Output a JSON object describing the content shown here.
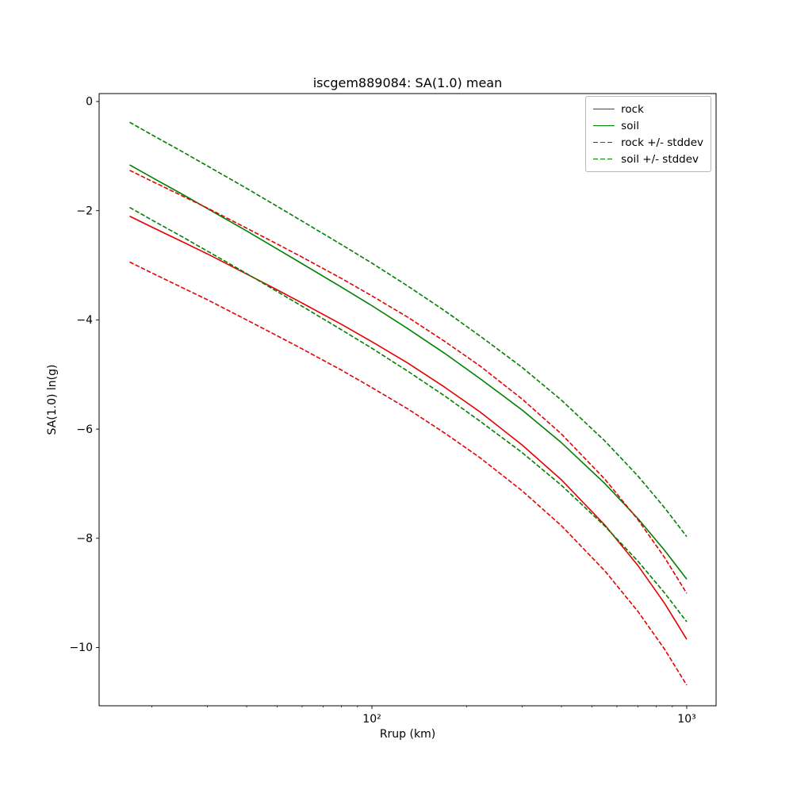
{
  "title": "iscgem889084: SA(1.0) mean",
  "chart_data": {
    "type": "line",
    "title": "iscgem889084: SA(1.0) mean",
    "xlabel": "Rrup (km)",
    "ylabel": "SA(1.0) ln(g)",
    "x_scale": "log",
    "xlim": [
      13.6,
      1240
    ],
    "ylim": [
      -11.1,
      0.15
    ],
    "grid": false,
    "legend_position": "upper right",
    "y_ticks": [
      0,
      -2,
      -4,
      -6,
      -8,
      -10
    ],
    "y_tick_labels": [
      "0",
      "−2",
      "−4",
      "−6",
      "−8",
      "−10"
    ],
    "x_tick_values": [
      100,
      1000
    ],
    "x_tick_labels": [
      "10²",
      "10³"
    ],
    "x": [
      17,
      20,
      25,
      30,
      40,
      50,
      60,
      80,
      100,
      130,
      170,
      220,
      300,
      400,
      550,
      700,
      850,
      1000
    ],
    "series": [
      {
        "name": "rock",
        "color": "#e60000",
        "style": "solid",
        "values": [
          -2.1,
          -2.3,
          -2.57,
          -2.79,
          -3.16,
          -3.45,
          -3.69,
          -4.08,
          -4.4,
          -4.79,
          -5.23,
          -5.68,
          -6.29,
          -6.93,
          -7.76,
          -8.5,
          -9.19,
          -9.85
        ]
      },
      {
        "name": "soil",
        "color": "#008000",
        "style": "solid",
        "values": [
          -1.16,
          -1.39,
          -1.7,
          -1.96,
          -2.37,
          -2.7,
          -2.97,
          -3.4,
          -3.74,
          -4.16,
          -4.61,
          -5.07,
          -5.65,
          -6.25,
          -7.0,
          -7.64,
          -8.22,
          -8.75
        ]
      },
      {
        "name": "rock + stddev",
        "color": "#e60000",
        "style": "dashed",
        "values": [
          -1.26,
          -1.46,
          -1.73,
          -1.95,
          -2.32,
          -2.61,
          -2.85,
          -3.24,
          -3.56,
          -3.95,
          -4.39,
          -4.84,
          -5.45,
          -6.09,
          -6.92,
          -7.66,
          -8.35,
          -9.01
        ]
      },
      {
        "name": "rock - stddev",
        "color": "#e60000",
        "style": "dashed",
        "values": [
          -2.94,
          -3.14,
          -3.41,
          -3.63,
          -4.0,
          -4.29,
          -4.53,
          -4.92,
          -5.24,
          -5.63,
          -6.07,
          -6.52,
          -7.13,
          -7.77,
          -8.6,
          -9.34,
          -10.03,
          -10.69
        ]
      },
      {
        "name": "soil + stddev",
        "color": "#008000",
        "style": "dashed",
        "values": [
          -0.38,
          -0.61,
          -0.92,
          -1.18,
          -1.59,
          -1.92,
          -2.19,
          -2.62,
          -2.96,
          -3.38,
          -3.83,
          -4.29,
          -4.87,
          -5.47,
          -6.22,
          -6.86,
          -7.44,
          -7.97
        ]
      },
      {
        "name": "soil - stddev",
        "color": "#008000",
        "style": "dashed",
        "values": [
          -1.94,
          -2.17,
          -2.48,
          -2.74,
          -3.15,
          -3.48,
          -3.75,
          -4.18,
          -4.52,
          -4.94,
          -5.39,
          -5.85,
          -6.43,
          -7.03,
          -7.78,
          -8.42,
          -9.0,
          -9.53
        ]
      }
    ],
    "legend": [
      {
        "label": "rock",
        "color": "#e60000",
        "style": "solid"
      },
      {
        "label": "soil",
        "color": "#008000",
        "style": "solid"
      },
      {
        "label": "rock +/- stddev",
        "color": "#e60000",
        "style": "dashed"
      },
      {
        "label": "soil +/- stddev",
        "color": "#008000",
        "style": "dashed"
      }
    ]
  }
}
